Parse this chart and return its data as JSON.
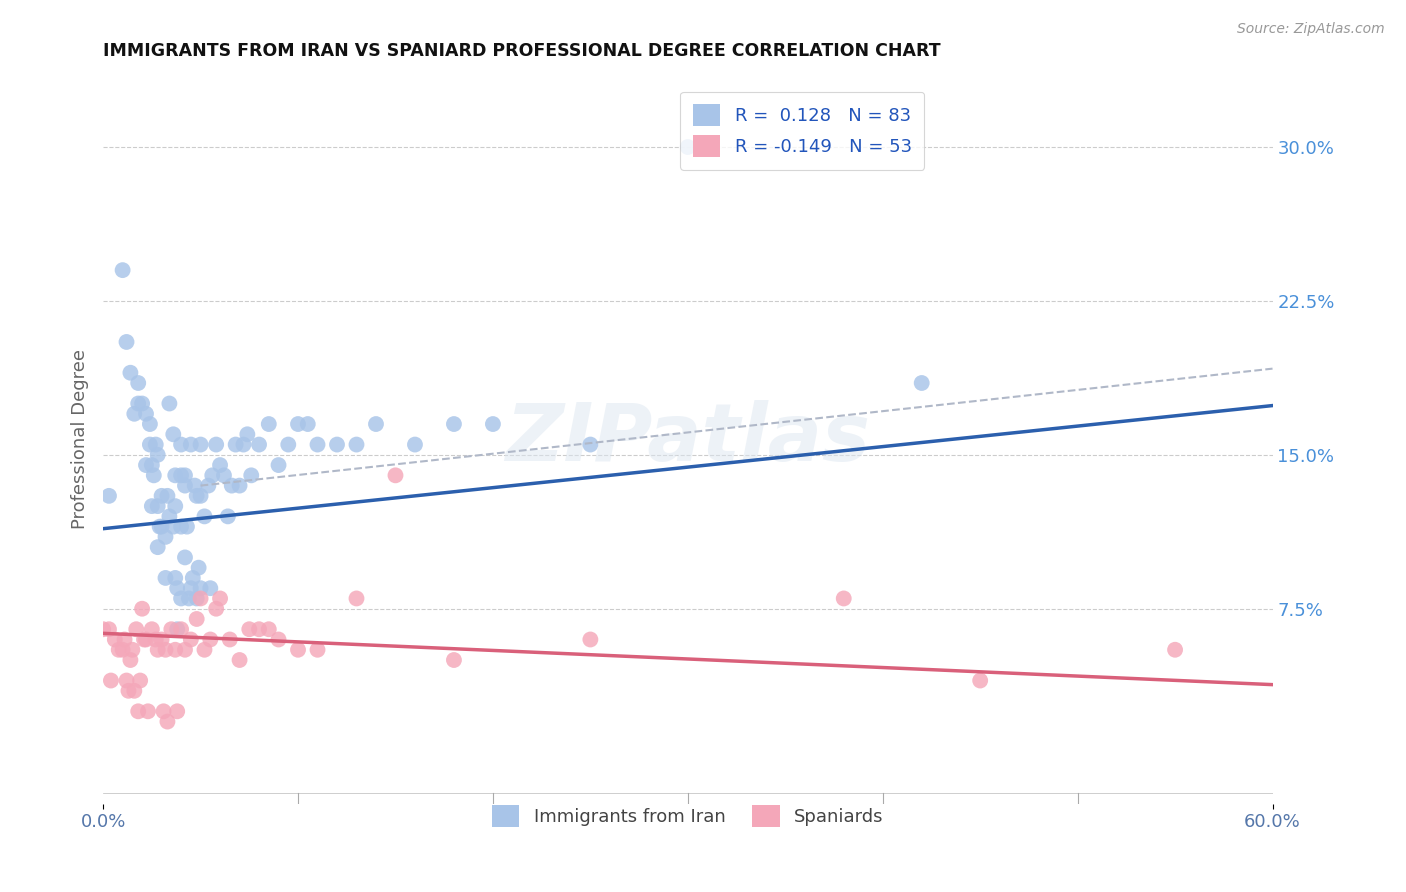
{
  "title": "IMMIGRANTS FROM IRAN VS SPANIARD PROFESSIONAL DEGREE CORRELATION CHART",
  "source": "Source: ZipAtlas.com",
  "ylabel": "Professional Degree",
  "right_yticks": [
    "30.0%",
    "22.5%",
    "15.0%",
    "7.5%"
  ],
  "right_ytick_vals": [
    0.3,
    0.225,
    0.15,
    0.075
  ],
  "xlim": [
    0.0,
    0.6
  ],
  "ylim": [
    -0.02,
    0.335
  ],
  "color_iran": "#a8c4e8",
  "color_spain": "#f4a7b9",
  "trendline_iran_color": "#2b5fad",
  "trendline_spain_color": "#d9607a",
  "trendline_dashed_color": "#b0b8c8",
  "background": "#ffffff",
  "watermark": "ZIPatlas",
  "iran_trend_x": [
    0.0,
    0.6
  ],
  "iran_trend_y_start": 0.114,
  "iran_trend_y_end": 0.174,
  "spain_trend_x": [
    0.0,
    0.6
  ],
  "spain_trend_y_start": 0.063,
  "spain_trend_y_end": 0.038,
  "dashed_trend_x": [
    0.05,
    0.6
  ],
  "dashed_trend_y_start": 0.135,
  "dashed_trend_y_end": 0.192,
  "iran_x": [
    0.003,
    0.01,
    0.012,
    0.014,
    0.016,
    0.018,
    0.018,
    0.02,
    0.022,
    0.022,
    0.024,
    0.024,
    0.025,
    0.025,
    0.026,
    0.027,
    0.028,
    0.028,
    0.028,
    0.029,
    0.03,
    0.03,
    0.032,
    0.032,
    0.033,
    0.034,
    0.034,
    0.036,
    0.036,
    0.037,
    0.037,
    0.037,
    0.038,
    0.038,
    0.04,
    0.04,
    0.04,
    0.04,
    0.042,
    0.042,
    0.042,
    0.043,
    0.044,
    0.045,
    0.045,
    0.046,
    0.047,
    0.048,
    0.048,
    0.049,
    0.05,
    0.05,
    0.05,
    0.052,
    0.054,
    0.055,
    0.056,
    0.058,
    0.06,
    0.062,
    0.064,
    0.066,
    0.068,
    0.07,
    0.072,
    0.074,
    0.076,
    0.08,
    0.085,
    0.09,
    0.095,
    0.1,
    0.105,
    0.11,
    0.12,
    0.13,
    0.14,
    0.16,
    0.18,
    0.2,
    0.25,
    0.3,
    0.42
  ],
  "iran_y": [
    0.13,
    0.24,
    0.205,
    0.19,
    0.17,
    0.175,
    0.185,
    0.175,
    0.17,
    0.145,
    0.165,
    0.155,
    0.145,
    0.125,
    0.14,
    0.155,
    0.15,
    0.125,
    0.105,
    0.115,
    0.13,
    0.115,
    0.11,
    0.09,
    0.13,
    0.175,
    0.12,
    0.16,
    0.115,
    0.14,
    0.125,
    0.09,
    0.085,
    0.065,
    0.155,
    0.14,
    0.115,
    0.08,
    0.14,
    0.135,
    0.1,
    0.115,
    0.08,
    0.155,
    0.085,
    0.09,
    0.135,
    0.13,
    0.08,
    0.095,
    0.155,
    0.13,
    0.085,
    0.12,
    0.135,
    0.085,
    0.14,
    0.155,
    0.145,
    0.14,
    0.12,
    0.135,
    0.155,
    0.135,
    0.155,
    0.16,
    0.14,
    0.155,
    0.165,
    0.145,
    0.155,
    0.165,
    0.165,
    0.155,
    0.155,
    0.155,
    0.165,
    0.155,
    0.165,
    0.165,
    0.155,
    0.3,
    0.185
  ],
  "spain_x": [
    0.0,
    0.003,
    0.004,
    0.006,
    0.008,
    0.01,
    0.011,
    0.012,
    0.013,
    0.014,
    0.015,
    0.016,
    0.017,
    0.018,
    0.019,
    0.02,
    0.021,
    0.022,
    0.023,
    0.025,
    0.027,
    0.028,
    0.03,
    0.031,
    0.032,
    0.033,
    0.035,
    0.037,
    0.038,
    0.04,
    0.042,
    0.045,
    0.048,
    0.05,
    0.052,
    0.055,
    0.058,
    0.06,
    0.065,
    0.07,
    0.075,
    0.08,
    0.085,
    0.09,
    0.1,
    0.11,
    0.13,
    0.15,
    0.18,
    0.25,
    0.38,
    0.45,
    0.55
  ],
  "spain_y": [
    0.065,
    0.065,
    0.04,
    0.06,
    0.055,
    0.055,
    0.06,
    0.04,
    0.035,
    0.05,
    0.055,
    0.035,
    0.065,
    0.025,
    0.04,
    0.075,
    0.06,
    0.06,
    0.025,
    0.065,
    0.06,
    0.055,
    0.06,
    0.025,
    0.055,
    0.02,
    0.065,
    0.055,
    0.025,
    0.065,
    0.055,
    0.06,
    0.07,
    0.08,
    0.055,
    0.06,
    0.075,
    0.08,
    0.06,
    0.05,
    0.065,
    0.065,
    0.065,
    0.06,
    0.055,
    0.055,
    0.08,
    0.14,
    0.05,
    0.06,
    0.08,
    0.04,
    0.055
  ]
}
